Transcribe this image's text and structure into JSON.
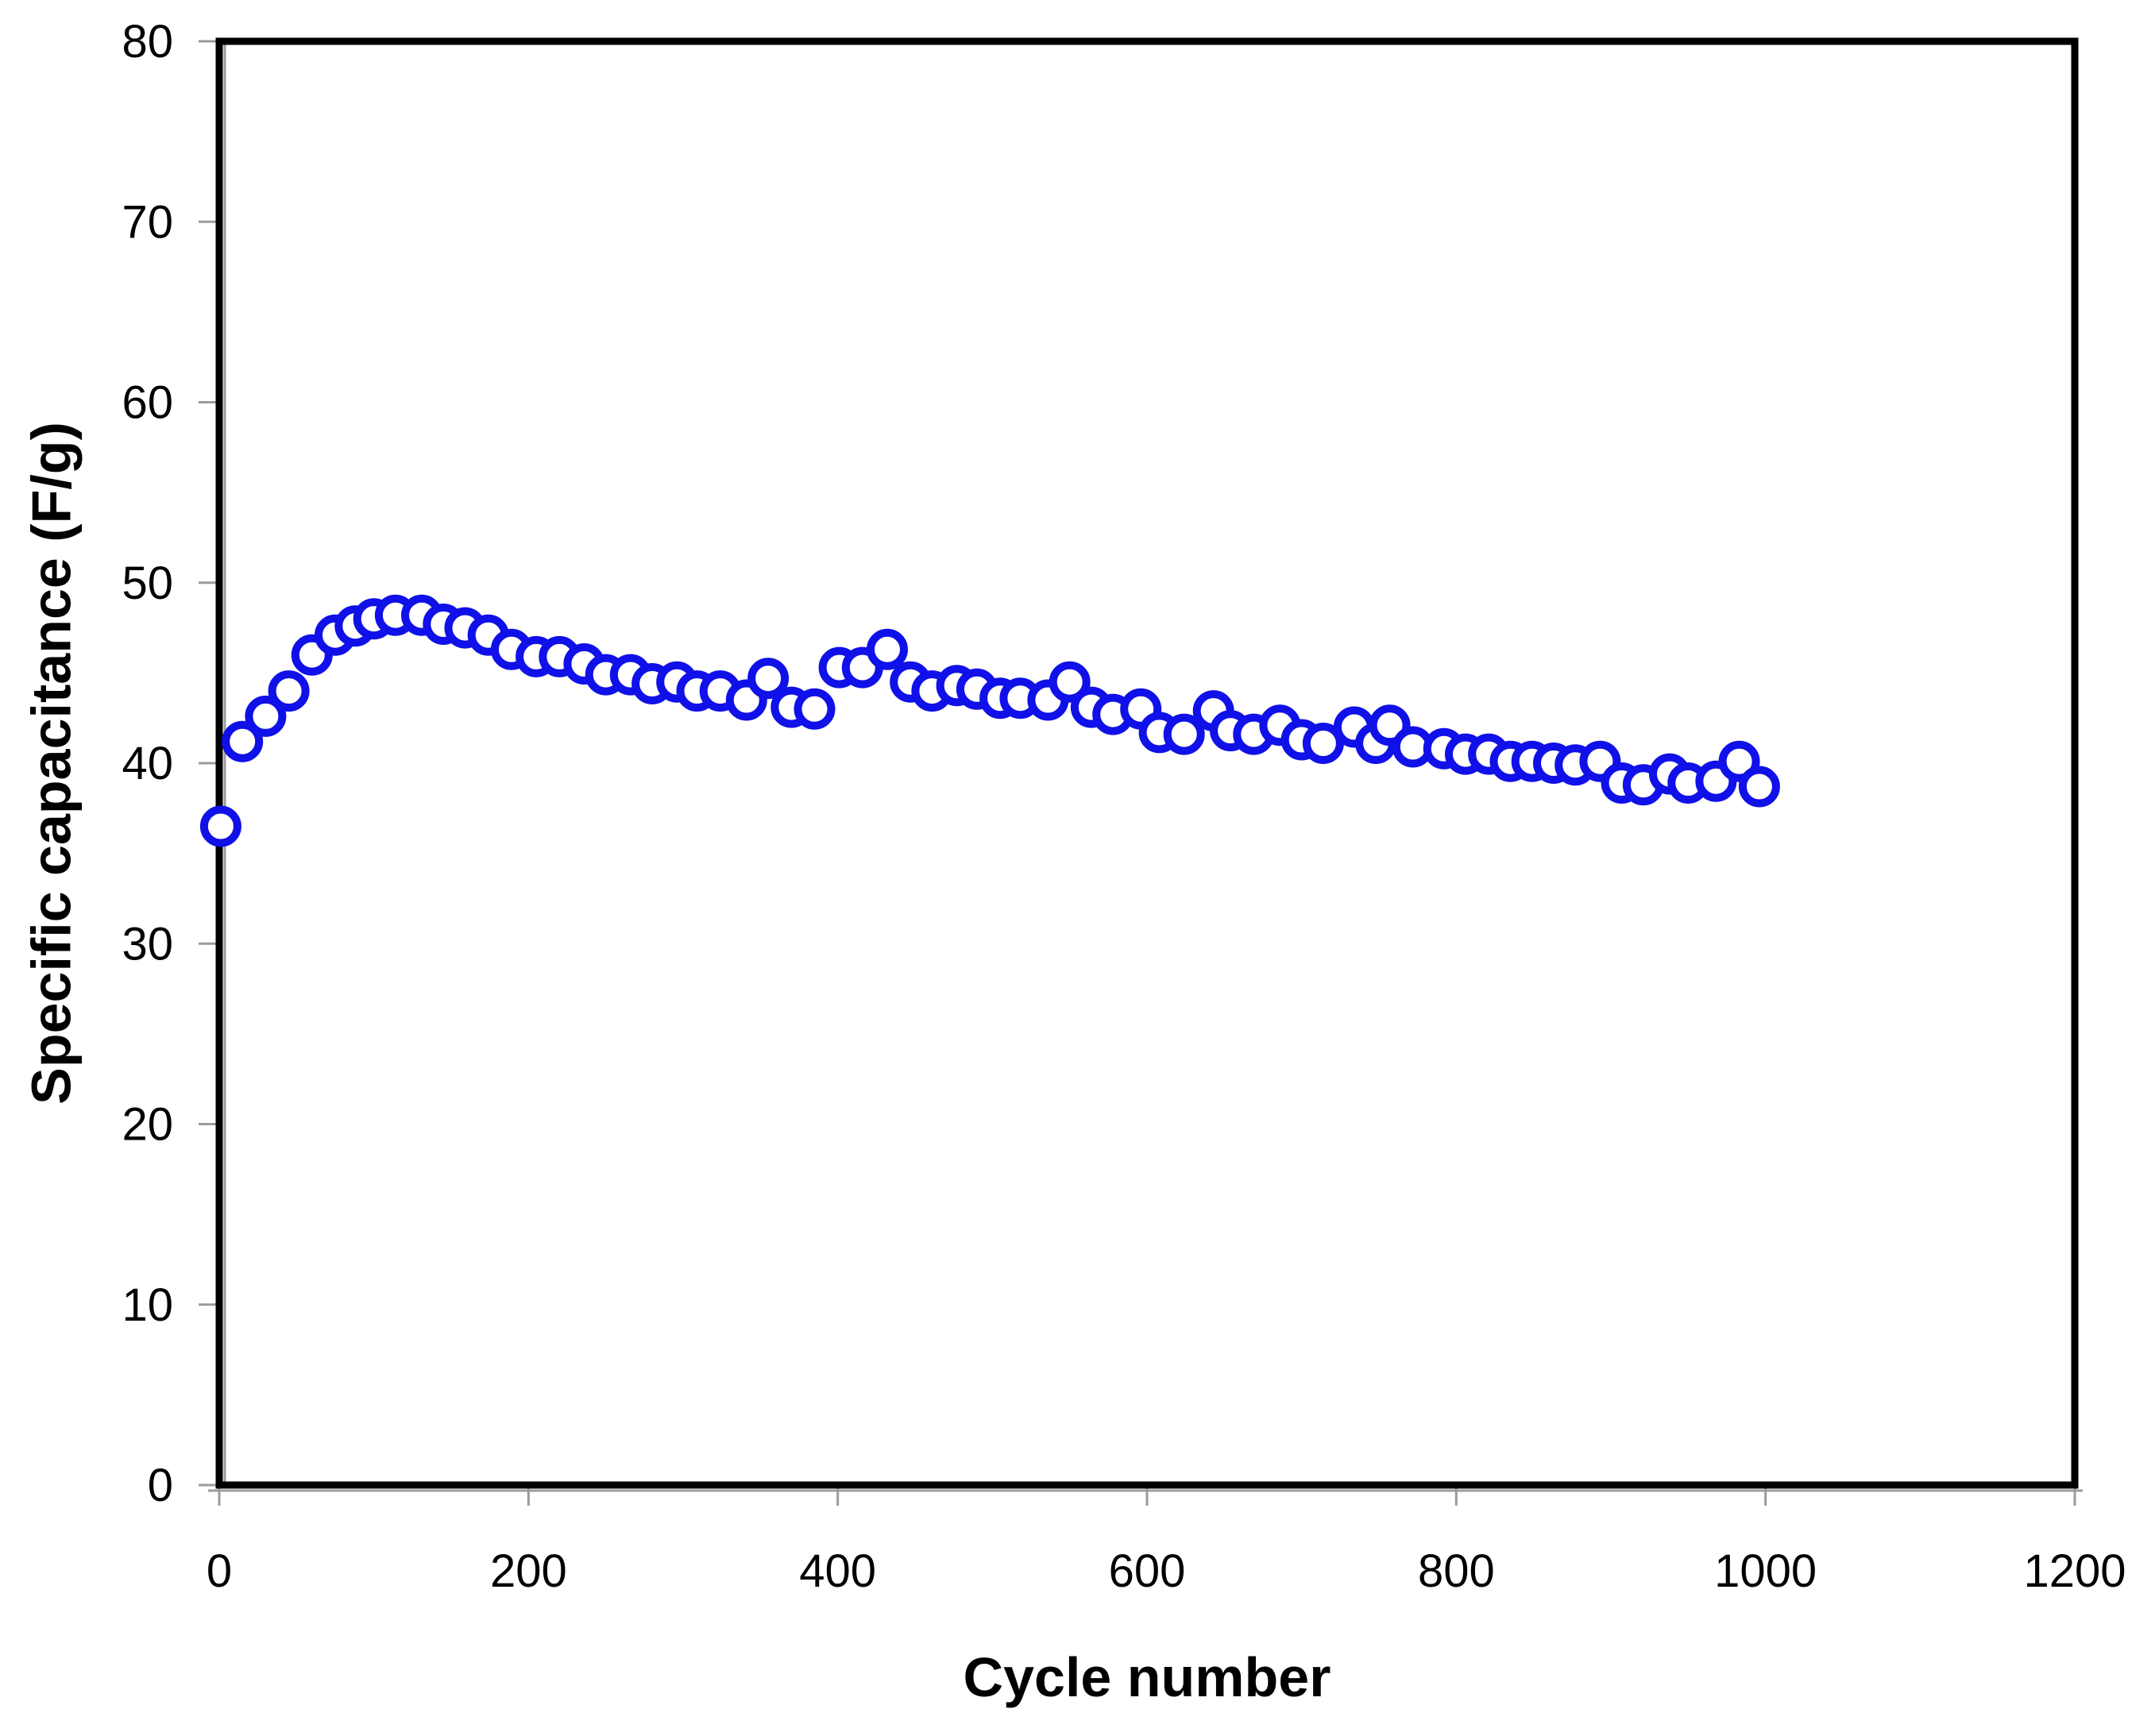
{
  "chart_data": {
    "type": "scatter",
    "title": "",
    "xlabel": "Cycle number",
    "ylabel": "Specific capacitance (F/g)",
    "xlim": [
      0,
      1200
    ],
    "ylim": [
      0,
      80
    ],
    "x_ticks": [
      0,
      200,
      400,
      600,
      800,
      1000,
      1200
    ],
    "y_ticks": [
      0,
      10,
      20,
      30,
      40,
      50,
      60,
      70,
      80
    ],
    "grid": false,
    "legend": null,
    "marker": {
      "style": "open-circle",
      "color": "#1010E8",
      "fill": "#FFFFFF"
    },
    "colors": {
      "plot_border": "#000000",
      "tick": "#9B9B9B",
      "text": "#000000",
      "background": "#FFFFFF"
    },
    "series": [
      {
        "name": "Specific capacitance",
        "points": [
          [
            1,
            36.5
          ],
          [
            15,
            41.2
          ],
          [
            30,
            42.6
          ],
          [
            45,
            44.0
          ],
          [
            60,
            46.0
          ],
          [
            75,
            47.1
          ],
          [
            88,
            47.6
          ],
          [
            100,
            48.0
          ],
          [
            114,
            48.2
          ],
          [
            131,
            48.2
          ],
          [
            145,
            47.7
          ],
          [
            159,
            47.5
          ],
          [
            174,
            47.1
          ],
          [
            189,
            46.3
          ],
          [
            205,
            45.9
          ],
          [
            220,
            45.9
          ],
          [
            236,
            45.5
          ],
          [
            250,
            44.9
          ],
          [
            266,
            44.9
          ],
          [
            280,
            44.4
          ],
          [
            296,
            44.5
          ],
          [
            309,
            44.0
          ],
          [
            324,
            44.0
          ],
          [
            341,
            43.5
          ],
          [
            355,
            44.7
          ],
          [
            370,
            43.1
          ],
          [
            385,
            43.0
          ],
          [
            401,
            45.3
          ],
          [
            416,
            45.3
          ],
          [
            432,
            46.3
          ],
          [
            447,
            44.5
          ],
          [
            461,
            44.0
          ],
          [
            477,
            44.3
          ],
          [
            490,
            44.1
          ],
          [
            505,
            43.6
          ],
          [
            518,
            43.6
          ],
          [
            536,
            43.5
          ],
          [
            550,
            44.5
          ],
          [
            564,
            43.1
          ],
          [
            578,
            42.7
          ],
          [
            596,
            43.0
          ],
          [
            608,
            41.7
          ],
          [
            624,
            41.6
          ],
          [
            643,
            42.9
          ],
          [
            654,
            41.8
          ],
          [
            669,
            41.6
          ],
          [
            686,
            42.1
          ],
          [
            700,
            41.3
          ],
          [
            714,
            41.1
          ],
          [
            734,
            42.0
          ],
          [
            748,
            41.1
          ],
          [
            757,
            42.1
          ],
          [
            772,
            40.9
          ],
          [
            792,
            40.8
          ],
          [
            806,
            40.5
          ],
          [
            821,
            40.5
          ],
          [
            835,
            40.1
          ],
          [
            849,
            40.1
          ],
          [
            863,
            40.0
          ],
          [
            877,
            39.9
          ],
          [
            893,
            40.1
          ],
          [
            907,
            38.9
          ],
          [
            921,
            38.8
          ],
          [
            938,
            39.4
          ],
          [
            950,
            38.9
          ],
          [
            968,
            39.0
          ],
          [
            983,
            40.1
          ],
          [
            996,
            38.7
          ]
        ]
      }
    ]
  }
}
